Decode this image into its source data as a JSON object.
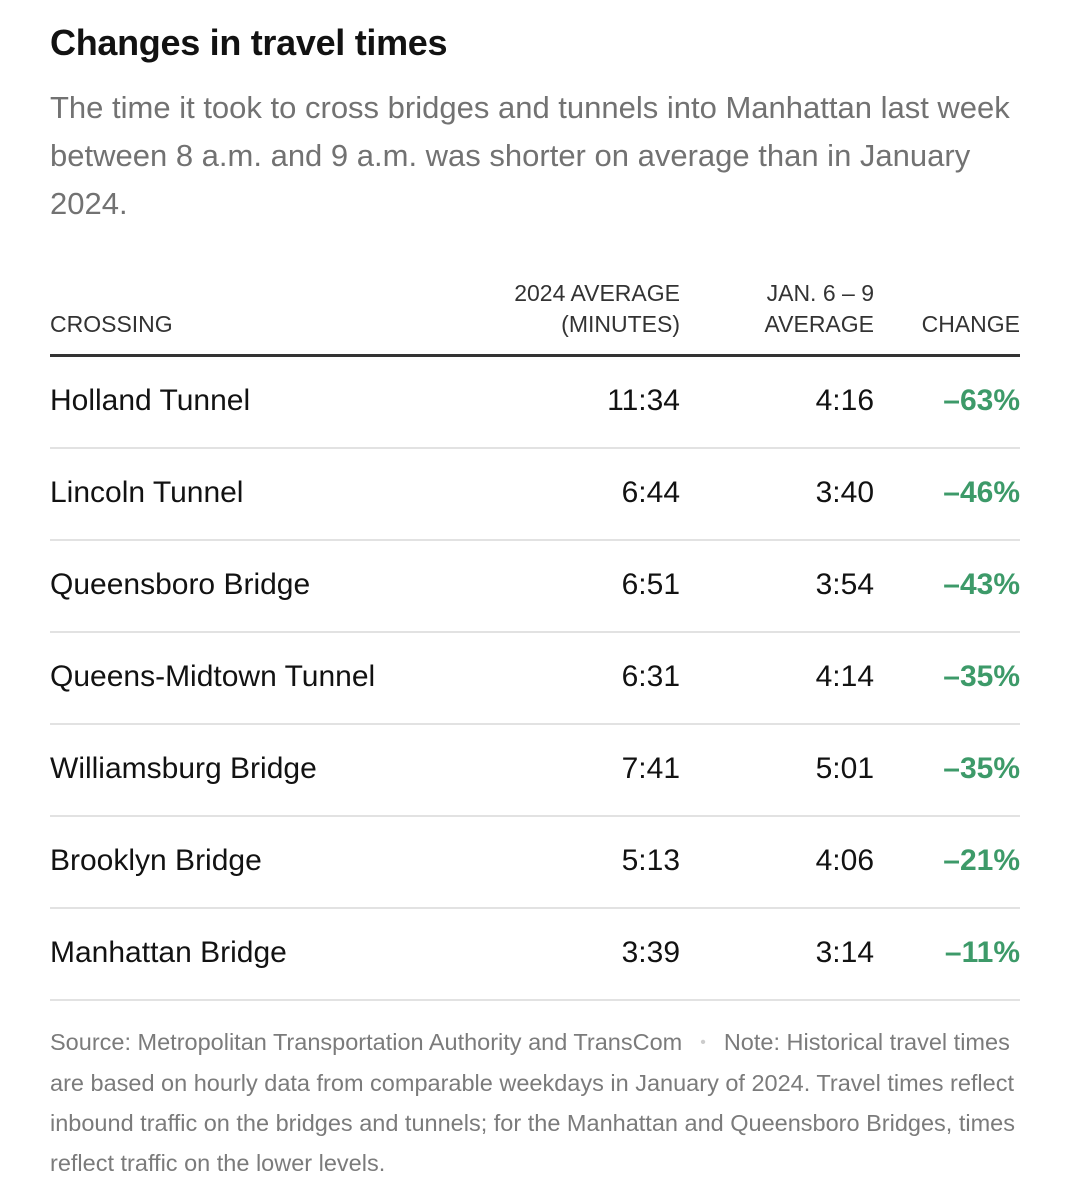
{
  "title": "Changes in travel times",
  "subtitle": "The time it took to cross bridges and tunnels into Manhattan last week between 8 a.m. and 9 a.m. was shorter on average than in January 2024.",
  "colors": {
    "change_positive_reduction": "#3d9a69",
    "header_rule": "#333333",
    "row_rule": "#e2e2e2"
  },
  "chart_data": {
    "type": "table",
    "columns": {
      "crossing": [
        "CROSSING"
      ],
      "avg_2024": [
        "2024 AVERAGE",
        "(MINUTES)"
      ],
      "avg_jan": [
        "JAN. 6 – 9",
        "AVERAGE"
      ],
      "change": [
        "CHANGE"
      ]
    },
    "rows": [
      {
        "crossing": "Holland Tunnel",
        "avg_2024": "11:34",
        "avg_jan": "4:16",
        "change": "–63%"
      },
      {
        "crossing": "Lincoln Tunnel",
        "avg_2024": "6:44",
        "avg_jan": "3:40",
        "change": "–46%"
      },
      {
        "crossing": "Queensboro Bridge",
        "avg_2024": "6:51",
        "avg_jan": "3:54",
        "change": "–43%"
      },
      {
        "crossing": "Queens-Midtown Tunnel",
        "avg_2024": "6:31",
        "avg_jan": "4:14",
        "change": "–35%"
      },
      {
        "crossing": "Williamsburg Bridge",
        "avg_2024": "7:41",
        "avg_jan": "5:01",
        "change": "–35%"
      },
      {
        "crossing": "Brooklyn Bridge",
        "avg_2024": "5:13",
        "avg_jan": "4:06",
        "change": "–21%"
      },
      {
        "crossing": "Manhattan Bridge",
        "avg_2024": "3:39",
        "avg_jan": "3:14",
        "change": "–11%"
      }
    ]
  },
  "footer": {
    "source": "Source: Metropolitan Transportation Authority and TransCom",
    "separator": "•",
    "note": "Note: Historical travel times are based on hourly data from comparable weekdays in January of 2024. Travel times reflect inbound traffic on the bridges and tunnels; for the Manhattan and Queensboro Bridges, times reflect traffic on the lower levels."
  }
}
